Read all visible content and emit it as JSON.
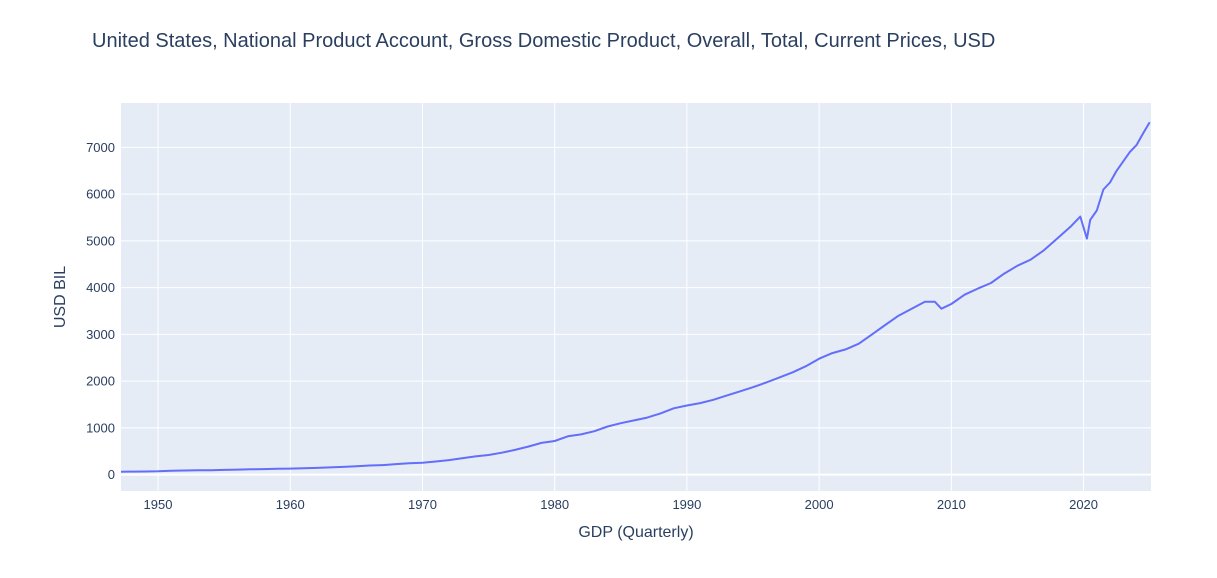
{
  "chart_data": {
    "type": "line",
    "title": "United States, National Product Account, Gross Domestic Product, Overall, Total, Current Prices, USD",
    "xlabel": "GDP (Quarterly)",
    "ylabel": "USD BIL",
    "xlim": [
      1947.2,
      2025.1
    ],
    "ylim": [
      -350,
      7950
    ],
    "x_ticks": [
      1950,
      1960,
      1970,
      1980,
      1990,
      2000,
      2010,
      2020
    ],
    "x_tick_labels": [
      "1950",
      "1960",
      "1970",
      "1980",
      "1990",
      "2000",
      "2010",
      "2020"
    ],
    "y_ticks": [
      0,
      1000,
      2000,
      3000,
      4000,
      5000,
      6000,
      7000
    ],
    "y_tick_labels": [
      "0",
      "1000",
      "2000",
      "3000",
      "4000",
      "5000",
      "6000",
      "7000"
    ],
    "grid": true,
    "legend": "none",
    "colors": {
      "plot_bg": "#e5ecf6",
      "grid": "#ffffff",
      "line": "#636efa",
      "text": "#2a3f5f"
    },
    "series": [
      {
        "x": [
          1947.0,
          1948.0,
          1949.0,
          1950.0,
          1951.0,
          1952.0,
          1953.0,
          1954.0,
          1955.0,
          1956.0,
          1957.0,
          1958.0,
          1959.0,
          1960.0,
          1961.0,
          1962.0,
          1963.0,
          1964.0,
          1965.0,
          1966.0,
          1967.0,
          1968.0,
          1969.0,
          1970.0,
          1971.0,
          1972.0,
          1973.0,
          1974.0,
          1975.0,
          1976.0,
          1977.0,
          1978.0,
          1979.0,
          1980.0,
          1981.0,
          1982.0,
          1983.0,
          1984.0,
          1985.0,
          1986.0,
          1987.0,
          1988.0,
          1989.0,
          1990.0,
          1991.0,
          1992.0,
          1993.0,
          1994.0,
          1995.0,
          1996.0,
          1997.0,
          1998.0,
          1999.0,
          2000.0,
          2001.0,
          2002.0,
          2003.0,
          2004.0,
          2005.0,
          2006.0,
          2007.0,
          2008.0,
          2008.75,
          2009.25,
          2010.0,
          2011.0,
          2012.0,
          2013.0,
          2014.0,
          2015.0,
          2016.0,
          2017.0,
          2018.0,
          2019.0,
          2019.75,
          2020.25,
          2020.5,
          2021.0,
          2021.5,
          2022.0,
          2022.5,
          2023.0,
          2023.5,
          2024.0,
          2024.5,
          2025.0
        ],
        "y": [
          60,
          65,
          68,
          72,
          82,
          88,
          92,
          94,
          102,
          108,
          114,
          118,
          126,
          130,
          135,
          145,
          155,
          165,
          180,
          195,
          205,
          225,
          245,
          255,
          280,
          310,
          350,
          390,
          420,
          470,
          530,
          600,
          680,
          720,
          820,
          860,
          930,
          1030,
          1100,
          1160,
          1220,
          1310,
          1420,
          1480,
          1530,
          1600,
          1690,
          1780,
          1870,
          1970,
          2080,
          2190,
          2320,
          2480,
          2600,
          2680,
          2800,
          3000,
          3200,
          3400,
          3550,
          3700,
          3700,
          3550,
          3650,
          3850,
          3980,
          4100,
          4300,
          4470,
          4600,
          4800,
          5050,
          5300,
          5520,
          5050,
          5450,
          5650,
          6100,
          6250,
          6500,
          6700,
          6900,
          7050,
          7300,
          7540
        ]
      }
    ]
  }
}
